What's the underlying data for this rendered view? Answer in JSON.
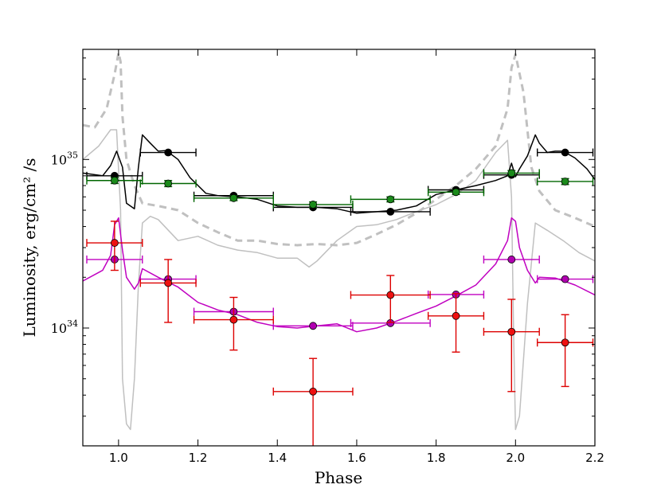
{
  "chart_data": {
    "type": "line",
    "title": "",
    "xlabel": "Phase",
    "ylabel": "Luminosity, erg/cm² /s",
    "y_scale": "log",
    "xlim": [
      0.91,
      2.2
    ],
    "ylim": [
      2e+33,
      4.5e+35
    ],
    "x_ticks": [
      {
        "value": 1.0,
        "label": "1.0"
      },
      {
        "value": 1.2,
        "label": "1.2"
      },
      {
        "value": 1.4,
        "label": "1.4"
      },
      {
        "value": 1.6,
        "label": "1.6"
      },
      {
        "value": 1.8,
        "label": "1.8"
      },
      {
        "value": 2.0,
        "label": "2.0"
      },
      {
        "value": 2.2,
        "label": "2.2"
      }
    ],
    "y_ticks": [
      {
        "value": 1e+34,
        "base": "10",
        "exp": "34"
      },
      {
        "value": 1e+35,
        "base": "10",
        "exp": "35"
      }
    ],
    "series": [
      {
        "name": "model light curve (grey dashed)",
        "kind": "line",
        "color": "#c0c0c0",
        "dashed": true,
        "x": [
          0.91,
          0.94,
          0.97,
          0.99,
          1.0,
          1.005,
          1.01,
          1.02,
          1.04,
          1.06,
          1.1,
          1.15,
          1.2,
          1.25,
          1.3,
          1.35,
          1.4,
          1.45,
          1.5,
          1.55,
          1.6,
          1.65,
          1.7,
          1.75,
          1.8,
          1.85,
          1.9,
          1.95,
          1.98,
          1.99,
          2.0,
          2.02,
          2.04,
          2.06,
          2.1,
          2.15,
          2.2
        ],
        "y": [
          1.6e+35,
          1.55e+35,
          2e+35,
          3.2e+35,
          4.3e+35,
          3.8e+35,
          1.8e+35,
          1e+35,
          7e+34,
          5.5e+34,
          5.3e+34,
          5e+34,
          4.2e+34,
          3.7e+34,
          3.3e+34,
          3.3e+34,
          3.15e+34,
          3.1e+34,
          3.15e+34,
          3.1e+34,
          3.2e+34,
          3.6e+34,
          4.1e+34,
          4.8e+34,
          5.8e+34,
          7e+34,
          8.8e+34,
          1.2e+35,
          2e+35,
          3.5e+35,
          4.2e+35,
          2.5e+35,
          9e+34,
          6.5e+34,
          5e+34,
          4.5e+34,
          4e+34
        ]
      },
      {
        "name": "model light curve (grey solid)",
        "kind": "line",
        "color": "#c0c0c0",
        "dashed": false,
        "x": [
          0.91,
          0.95,
          0.98,
          0.995,
          1.005,
          1.01,
          1.02,
          1.03,
          1.04,
          1.05,
          1.06,
          1.08,
          1.1,
          1.15,
          1.2,
          1.25,
          1.3,
          1.35,
          1.4,
          1.45,
          1.48,
          1.5,
          1.55,
          1.6,
          1.65,
          1.7,
          1.75,
          1.8,
          1.85,
          1.9,
          1.95,
          1.98,
          1.99,
          1.995,
          2.0,
          2.01,
          2.03,
          2.05,
          2.08,
          2.12,
          2.16,
          2.2
        ],
        "y": [
          1e+35,
          1.2e+35,
          1.5e+35,
          1.5e+35,
          5e+34,
          5e+33,
          2.7e+33,
          2.5e+33,
          5e+33,
          1.8e+34,
          4.2e+34,
          4.6e+34,
          4.4e+34,
          3.3e+34,
          3.5e+34,
          3.1e+34,
          2.9e+34,
          2.8e+34,
          2.6e+34,
          2.6e+34,
          2.3e+34,
          2.5e+34,
          3.3e+34,
          4e+34,
          4.1e+34,
          4.4e+34,
          4.9e+34,
          5.4e+34,
          6.2e+34,
          7.5e+34,
          1.1e+35,
          1.3e+35,
          6e+34,
          1e+34,
          2.5e+33,
          3e+33,
          1.4e+34,
          4.2e+34,
          3.8e+34,
          3.3e+34,
          2.8e+34,
          2.5e+34
        ]
      },
      {
        "name": "model (black)",
        "kind": "line",
        "color": "#000000",
        "dashed": false,
        "x": [
          0.91,
          0.96,
          0.98,
          0.995,
          1.01,
          1.02,
          1.04,
          1.05,
          1.06,
          1.08,
          1.1,
          1.12,
          1.15,
          1.18,
          1.22,
          1.25,
          1.3,
          1.35,
          1.4,
          1.45,
          1.5,
          1.55,
          1.6,
          1.65,
          1.7,
          1.75,
          1.8,
          1.85,
          1.9,
          1.95,
          1.98,
          1.99,
          2.0,
          2.01,
          2.03,
          2.05,
          2.06,
          2.08,
          2.1,
          2.12,
          2.15,
          2.18,
          2.2
        ],
        "y": [
          8.3e+34,
          8e+34,
          9.2e+34,
          1.12e+35,
          9e+34,
          5.5e+34,
          5.1e+34,
          9e+34,
          1.4e+35,
          1.25e+35,
          1.12e+35,
          1.13e+35,
          1e+35,
          7.8e+34,
          6.3e+34,
          6.1e+34,
          6e+34,
          5.8e+34,
          5.3e+34,
          5.2e+34,
          5.2e+34,
          5.1e+34,
          4.8e+34,
          4.9e+34,
          5e+34,
          5.3e+34,
          6.2e+34,
          6.6e+34,
          7e+34,
          7.5e+34,
          8e+34,
          9.5e+34,
          7.9e+34,
          8.8e+34,
          1.05e+35,
          1.4e+35,
          1.25e+35,
          1.1e+35,
          1.12e+35,
          1.12e+35,
          1.02e+35,
          8.8e+34,
          7.6e+34
        ]
      },
      {
        "name": "model (magenta)",
        "kind": "line",
        "color": "#c000c0",
        "dashed": false,
        "x": [
          0.91,
          0.96,
          0.98,
          0.99,
          1.0,
          1.01,
          1.02,
          1.04,
          1.05,
          1.06,
          1.1,
          1.15,
          1.2,
          1.25,
          1.3,
          1.35,
          1.4,
          1.45,
          1.5,
          1.55,
          1.6,
          1.65,
          1.7,
          1.75,
          1.8,
          1.85,
          1.9,
          1.95,
          1.98,
          1.99,
          2.0,
          2.01,
          2.03,
          2.05,
          2.06,
          2.1,
          2.15,
          2.2
        ],
        "y": [
          1.9e+34,
          2.2e+34,
          2.7e+34,
          4.1e+34,
          4.5e+34,
          2.9e+34,
          2e+34,
          1.7e+34,
          1.85e+34,
          2.25e+34,
          2e+34,
          1.75e+34,
          1.42e+34,
          1.28e+34,
          1.2e+34,
          1.08e+34,
          1.02e+34,
          1e+34,
          1.03e+34,
          1.06e+34,
          9.5e+33,
          1e+34,
          1.1e+34,
          1.22e+34,
          1.35e+34,
          1.55e+34,
          1.8e+34,
          2.4e+34,
          3.3e+34,
          4.5e+34,
          4.3e+34,
          3e+34,
          2.2e+34,
          1.85e+34,
          2e+34,
          1.98e+34,
          1.8e+34,
          1.57e+34
        ]
      },
      {
        "name": "black data",
        "kind": "errorbar",
        "color": "#000000",
        "marker": "#000000",
        "x": [
          0.99,
          1.125,
          1.29,
          1.49,
          1.685,
          1.85,
          1.99,
          2.125
        ],
        "y": [
          8e+34,
          1.1e+35,
          6.1e+34,
          5.2e+34,
          4.9e+34,
          6.6e+34,
          8.1e+34,
          1.1e+35
        ],
        "xerr": [
          0.07,
          0.07,
          0.1,
          0.1,
          0.1,
          0.07,
          0.07,
          0.07
        ],
        "ylo": [
          8e+34,
          1.1e+35,
          6.1e+34,
          5.2e+34,
          4.9e+34,
          6.6e+34,
          8.1e+34,
          1.1e+35
        ],
        "yhi": [
          8e+34,
          1.1e+35,
          6.1e+34,
          5.2e+34,
          4.9e+34,
          6.6e+34,
          8.1e+34,
          1.1e+35
        ]
      },
      {
        "name": "green data",
        "kind": "errorbar",
        "color": "#006600",
        "marker": "#1a8a1a",
        "x": [
          0.99,
          1.125,
          1.29,
          1.49,
          1.685,
          1.85,
          1.99,
          2.125
        ],
        "y": [
          7.5e+34,
          7.2e+34,
          5.9e+34,
          5.4e+34,
          5.8e+34,
          6.4e+34,
          8.3e+34,
          7.4e+34
        ],
        "xerr": [
          0.07,
          0.07,
          0.1,
          0.1,
          0.1,
          0.07,
          0.07,
          0.07
        ],
        "ylo": [
          7.2e+34,
          6.9e+34,
          5.7e+34,
          5.2e+34,
          5.6e+34,
          6.2e+34,
          8e+34,
          7.1e+34
        ],
        "yhi": [
          7.8e+34,
          7.5e+34,
          6.1e+34,
          5.6e+34,
          6e+34,
          6.6e+34,
          8.6e+34,
          7.7e+34
        ]
      },
      {
        "name": "magenta data",
        "kind": "errorbar",
        "color": "#c000c0",
        "marker": "#b000b0",
        "x": [
          0.99,
          1.125,
          1.29,
          1.49,
          1.685,
          1.85,
          1.99,
          2.125
        ],
        "y": [
          2.55e+34,
          1.95e+34,
          1.25e+34,
          1.03e+34,
          1.07e+34,
          1.58e+34,
          2.55e+34,
          1.95e+34
        ],
        "xerr": [
          0.07,
          0.07,
          0.1,
          0.1,
          0.1,
          0.07,
          0.07,
          0.07
        ],
        "ylo": [
          2.55e+34,
          1.95e+34,
          1.25e+34,
          1.03e+34,
          1.07e+34,
          1.58e+34,
          2.55e+34,
          1.95e+34
        ],
        "yhi": [
          2.55e+34,
          1.95e+34,
          1.25e+34,
          1.03e+34,
          1.07e+34,
          1.58e+34,
          2.55e+34,
          1.95e+34
        ]
      },
      {
        "name": "red data",
        "kind": "errorbar",
        "color": "#dd0000",
        "marker": "#ee1111",
        "x": [
          0.99,
          1.125,
          1.29,
          1.49,
          1.685,
          1.85,
          1.99,
          2.125
        ],
        "y": [
          3.2e+34,
          1.85e+34,
          1.12e+34,
          4.2e+33,
          1.57e+34,
          1.18e+34,
          9.5e+33,
          8.2e+33
        ],
        "xerr": [
          0.07,
          0.07,
          0.1,
          0.1,
          0.1,
          0.07,
          0.07,
          0.07
        ],
        "ylo": [
          2.2e+34,
          1.08e+34,
          7.4e+33,
          1.9e+33,
          1.08e+34,
          7.2e+33,
          4.2e+33,
          4.5e+33
        ],
        "yhi": [
          4.3e+34,
          2.55e+34,
          1.52e+34,
          6.6e+33,
          2.05e+34,
          1.6e+34,
          1.48e+34,
          1.2e+34
        ]
      }
    ]
  }
}
